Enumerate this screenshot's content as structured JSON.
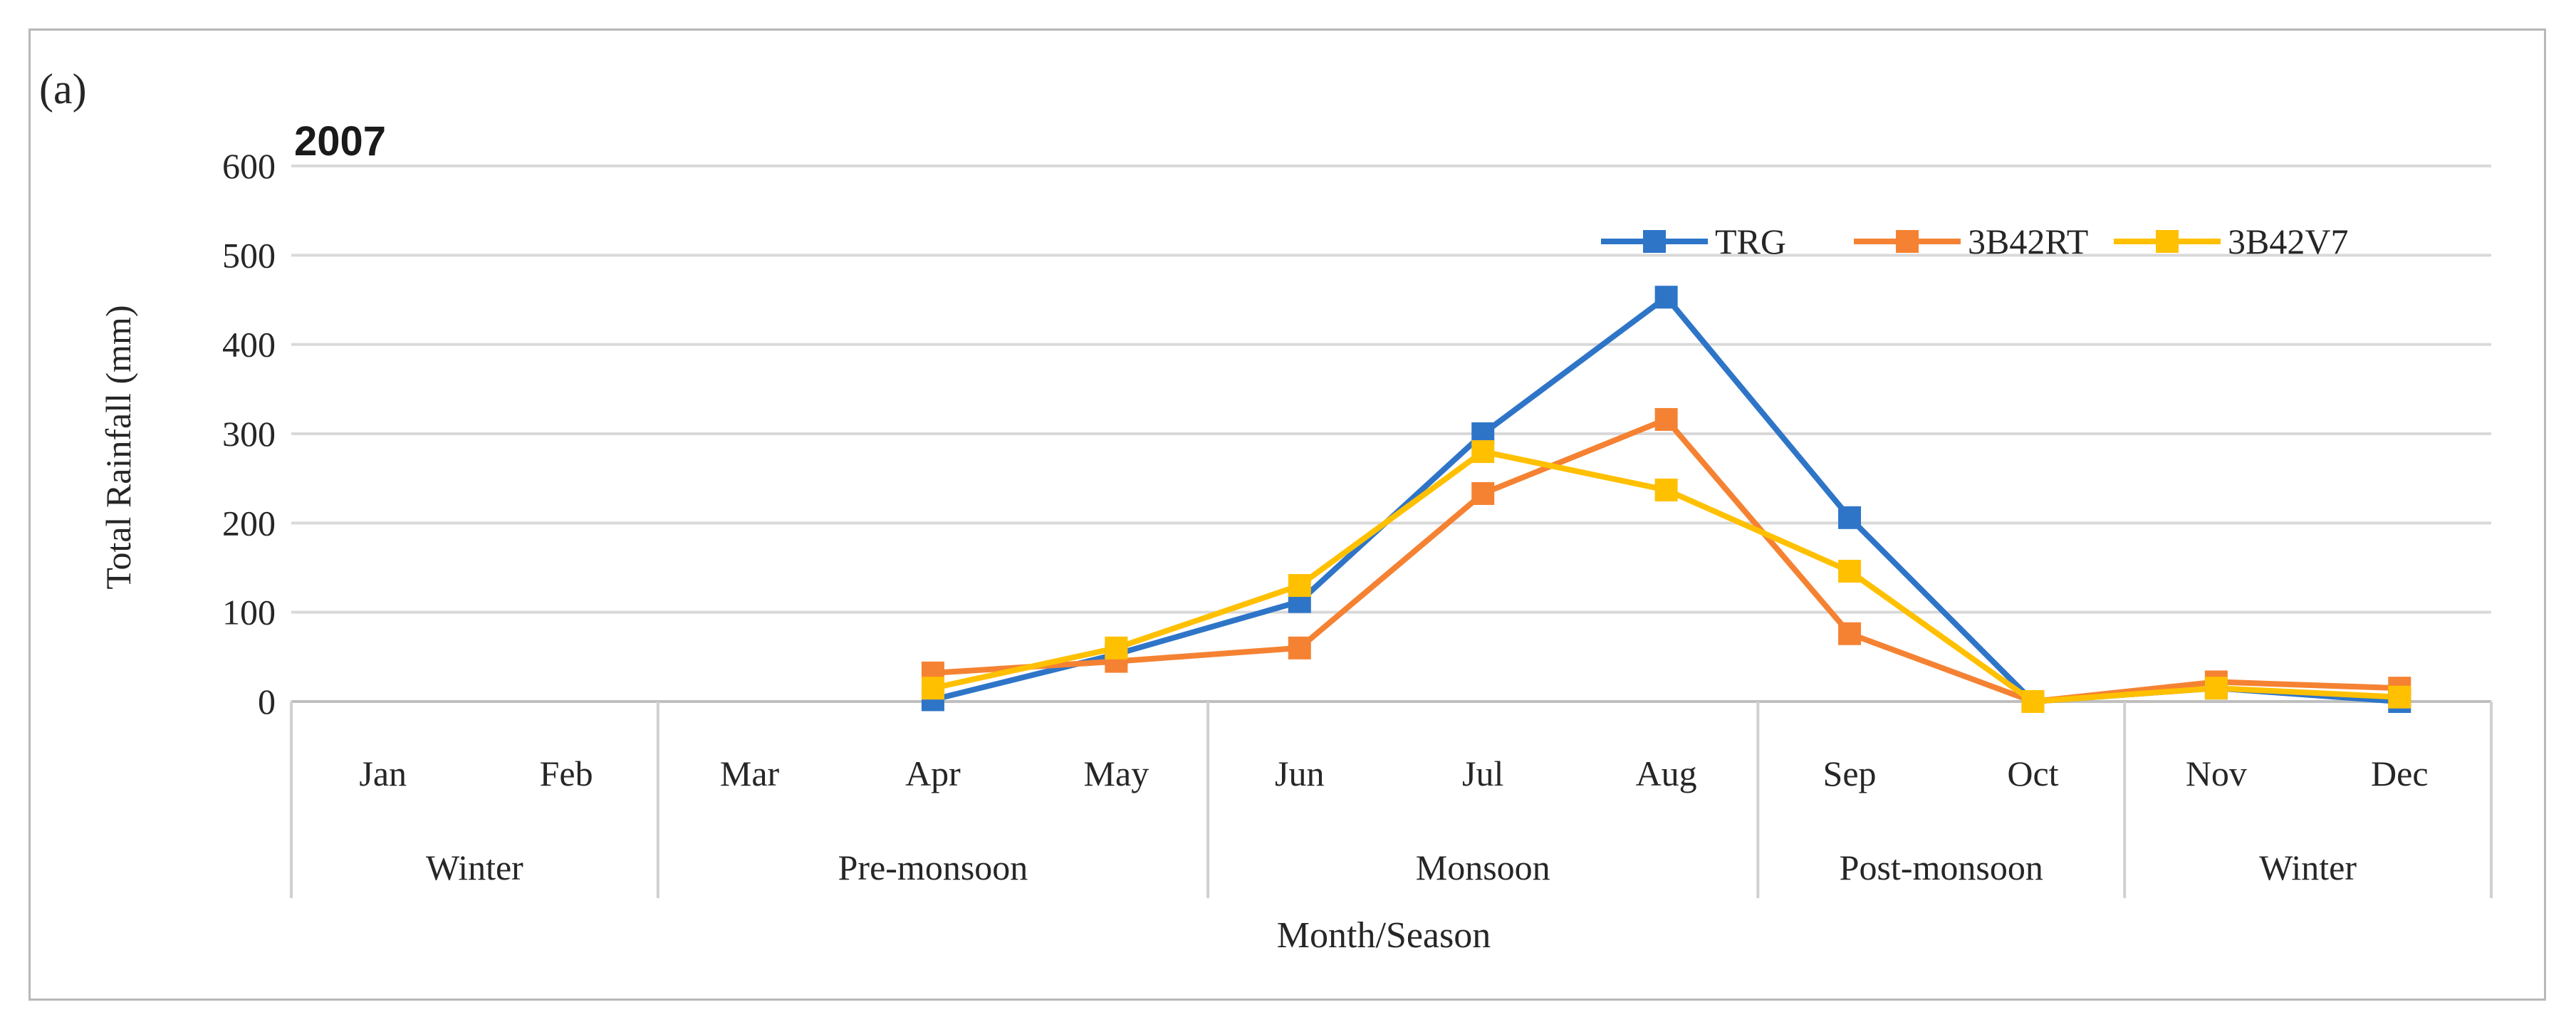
{
  "chart_data": {
    "type": "line",
    "panel_label": "(a)",
    "title": "2007",
    "xlabel": "Month/Season",
    "ylabel": "Total Rainfall (mm)",
    "ylim": [
      0,
      600
    ],
    "yticks": [
      0,
      100,
      200,
      300,
      400,
      500,
      600
    ],
    "grid": true,
    "legend_position": "top-right",
    "categories": [
      "Jan",
      "Feb",
      "Mar",
      "Apr",
      "May",
      "Jun",
      "Jul",
      "Aug",
      "Sep",
      "Oct",
      "Nov",
      "Dec"
    ],
    "seasons": [
      {
        "name": "Winter",
        "months": [
          "Jan",
          "Feb"
        ]
      },
      {
        "name": "Pre-monsoon",
        "months": [
          "Mar",
          "Apr",
          "May"
        ]
      },
      {
        "name": "Monsoon",
        "months": [
          "Jun",
          "Jul",
          "Aug"
        ]
      },
      {
        "name": "Post-monsoon",
        "months": [
          "Sep",
          "Oct"
        ]
      },
      {
        "name": "Winter",
        "months": [
          "Nov",
          "Dec"
        ]
      }
    ],
    "series": [
      {
        "name": "TRG",
        "color": "#2e75c8",
        "values": [
          null,
          null,
          null,
          2,
          53,
          112,
          300,
          453,
          206,
          0,
          15,
          0
        ]
      },
      {
        "name": "3B42RT",
        "color": "#f58232",
        "values": [
          null,
          null,
          null,
          32,
          45,
          60,
          233,
          316,
          76,
          0,
          22,
          15
        ]
      },
      {
        "name": "3B42V7",
        "color": "#ffc000",
        "values": [
          null,
          null,
          null,
          15,
          60,
          130,
          280,
          237,
          146,
          0,
          15,
          5
        ]
      }
    ]
  }
}
